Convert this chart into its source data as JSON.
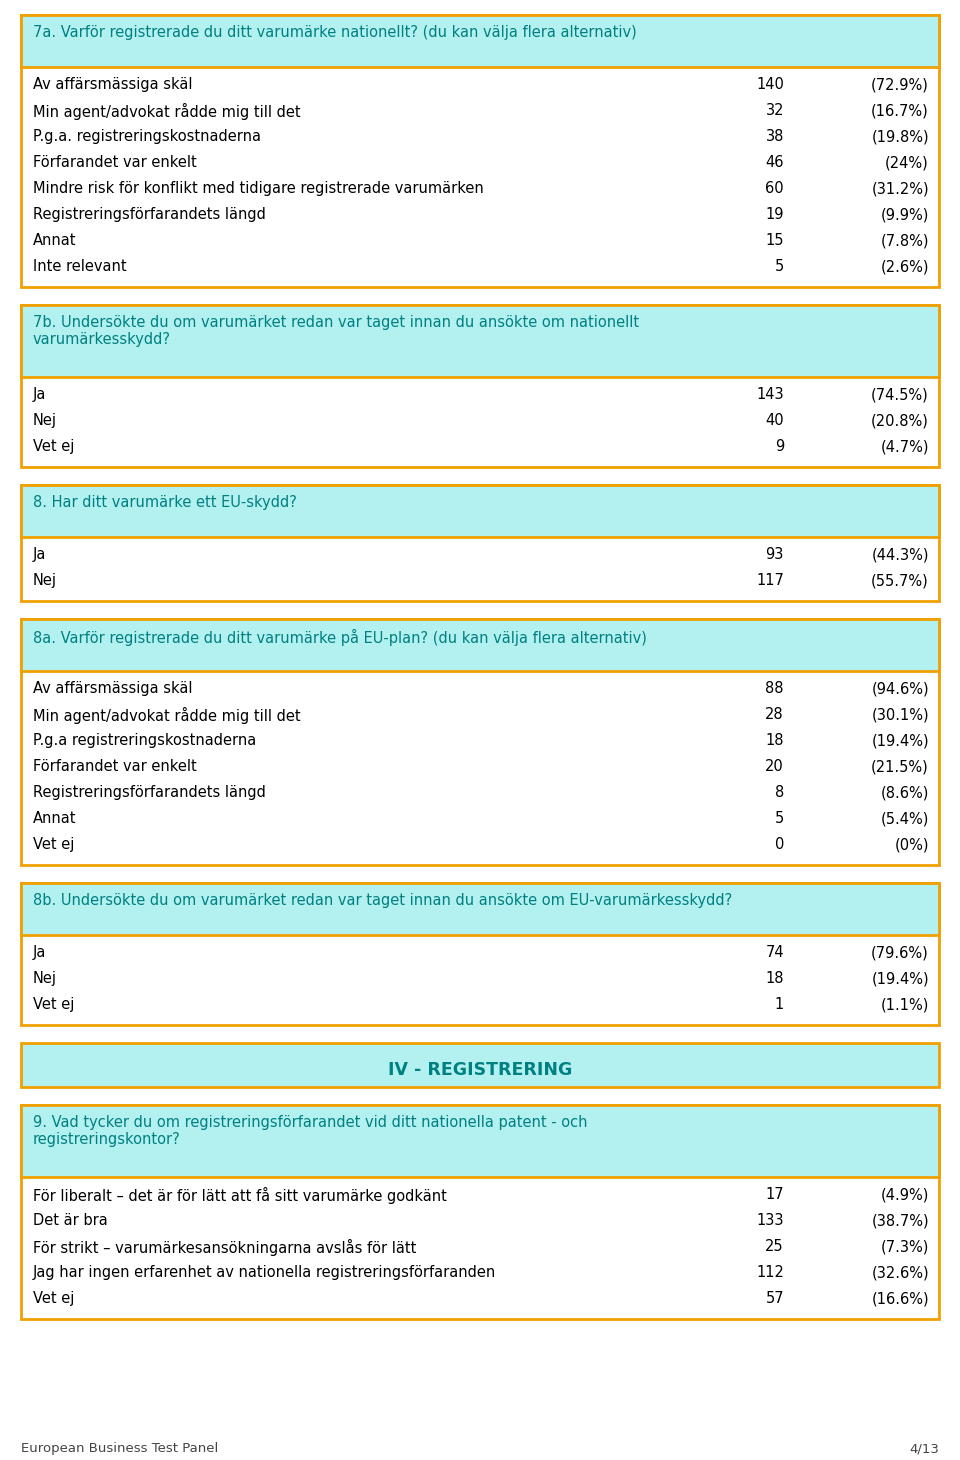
{
  "page_bg": "#ffffff",
  "header_bg": "#b3f0f0",
  "header_border": "#f0a000",
  "data_bg": "#ffffff",
  "section_title_color": "#008080",
  "data_text_color": "#000000",
  "footer_text": "European Business Test Panel",
  "footer_page": "4/13",
  "blocks": [
    {
      "type": "question_with_data",
      "header": "7a. Varför registrerade du ditt varumärke nationellt? (du kan välja flera alternativ)",
      "header_lines": 1,
      "rows": [
        {
          "label": "Av affärsmässiga skäl",
          "n": "140",
          "pct": "(72.9%)"
        },
        {
          "label": "Min agent/advokat rådde mig till det",
          "n": "32",
          "pct": "(16.7%)"
        },
        {
          "label": "P.g.a. registreringskostnaderna",
          "n": "38",
          "pct": "(19.8%)"
        },
        {
          "label": "Förfarandet var enkelt",
          "n": "46",
          "pct": "(24%)"
        },
        {
          "label": "Mindre risk för konflikt med tidigare registrerade varumärken",
          "n": "60",
          "pct": "(31.2%)"
        },
        {
          "label": "Registreringsförfarandets längd",
          "n": "19",
          "pct": "(9.9%)"
        },
        {
          "label": "Annat",
          "n": "15",
          "pct": "(7.8%)"
        },
        {
          "label": "Inte relevant",
          "n": "5",
          "pct": "(2.6%)"
        }
      ]
    },
    {
      "type": "question_with_data",
      "header": "7b. Undersökte du om varumärket redan var taget innan du ansökte om nationellt\nvarumärkesskydd?",
      "header_lines": 2,
      "rows": [
        {
          "label": "Ja",
          "n": "143",
          "pct": "(74.5%)"
        },
        {
          "label": "Nej",
          "n": "40",
          "pct": "(20.8%)"
        },
        {
          "label": "Vet ej",
          "n": "9",
          "pct": "(4.7%)"
        }
      ]
    },
    {
      "type": "question_with_data",
      "header": "8. Har ditt varumärke ett EU-skydd?",
      "header_lines": 1,
      "rows": [
        {
          "label": "Ja",
          "n": "93",
          "pct": "(44.3%)"
        },
        {
          "label": "Nej",
          "n": "117",
          "pct": "(55.7%)"
        }
      ]
    },
    {
      "type": "question_with_data",
      "header": "8a. Varför registrerade du ditt varumärke på EU-plan? (du kan välja flera alternativ)",
      "header_lines": 1,
      "rows": [
        {
          "label": "Av affärsmässiga skäl",
          "n": "88",
          "pct": "(94.6%)"
        },
        {
          "label": "Min agent/advokat rådde mig till det",
          "n": "28",
          "pct": "(30.1%)"
        },
        {
          "label": "P.g.a registreringskostnaderna",
          "n": "18",
          "pct": "(19.4%)"
        },
        {
          "label": "Förfarandet var enkelt",
          "n": "20",
          "pct": "(21.5%)"
        },
        {
          "label": "Registreringsförfarandets längd",
          "n": "8",
          "pct": "(8.6%)"
        },
        {
          "label": "Annat",
          "n": "5",
          "pct": "(5.4%)"
        },
        {
          "label": "Vet ej",
          "n": "0",
          "pct": "(0%)"
        }
      ]
    },
    {
      "type": "question_with_data",
      "header": "8b. Undersökte du om varumärket redan var taget innan du ansökte om EU-varumärkesskydd?",
      "header_lines": 1,
      "rows": [
        {
          "label": "Ja",
          "n": "74",
          "pct": "(79.6%)"
        },
        {
          "label": "Nej",
          "n": "18",
          "pct": "(19.4%)"
        },
        {
          "label": "Vet ej",
          "n": "1",
          "pct": "(1.1%)"
        }
      ]
    },
    {
      "type": "section_divider",
      "text": "IV - REGISTRERING"
    },
    {
      "type": "question_with_data",
      "header": "9. Vad tycker du om registreringsförfarandet vid ditt nationella patent - och\nregistreringskontor?",
      "header_lines": 2,
      "rows": [
        {
          "label": "För liberalt – det är för lätt att få sitt varumärke godkänt",
          "n": "17",
          "pct": "(4.9%)"
        },
        {
          "label": "Det är bra",
          "n": "133",
          "pct": "(38.7%)"
        },
        {
          "label": "För strikt – varumärkesansökningarna avslås för lätt",
          "n": "25",
          "pct": "(7.3%)"
        },
        {
          "label": "Jag har ingen erfarenhet av nationella registreringsförfaranden",
          "n": "112",
          "pct": "(32.6%)"
        },
        {
          "label": "Vet ej",
          "n": "57",
          "pct": "(16.6%)"
        }
      ]
    }
  ]
}
